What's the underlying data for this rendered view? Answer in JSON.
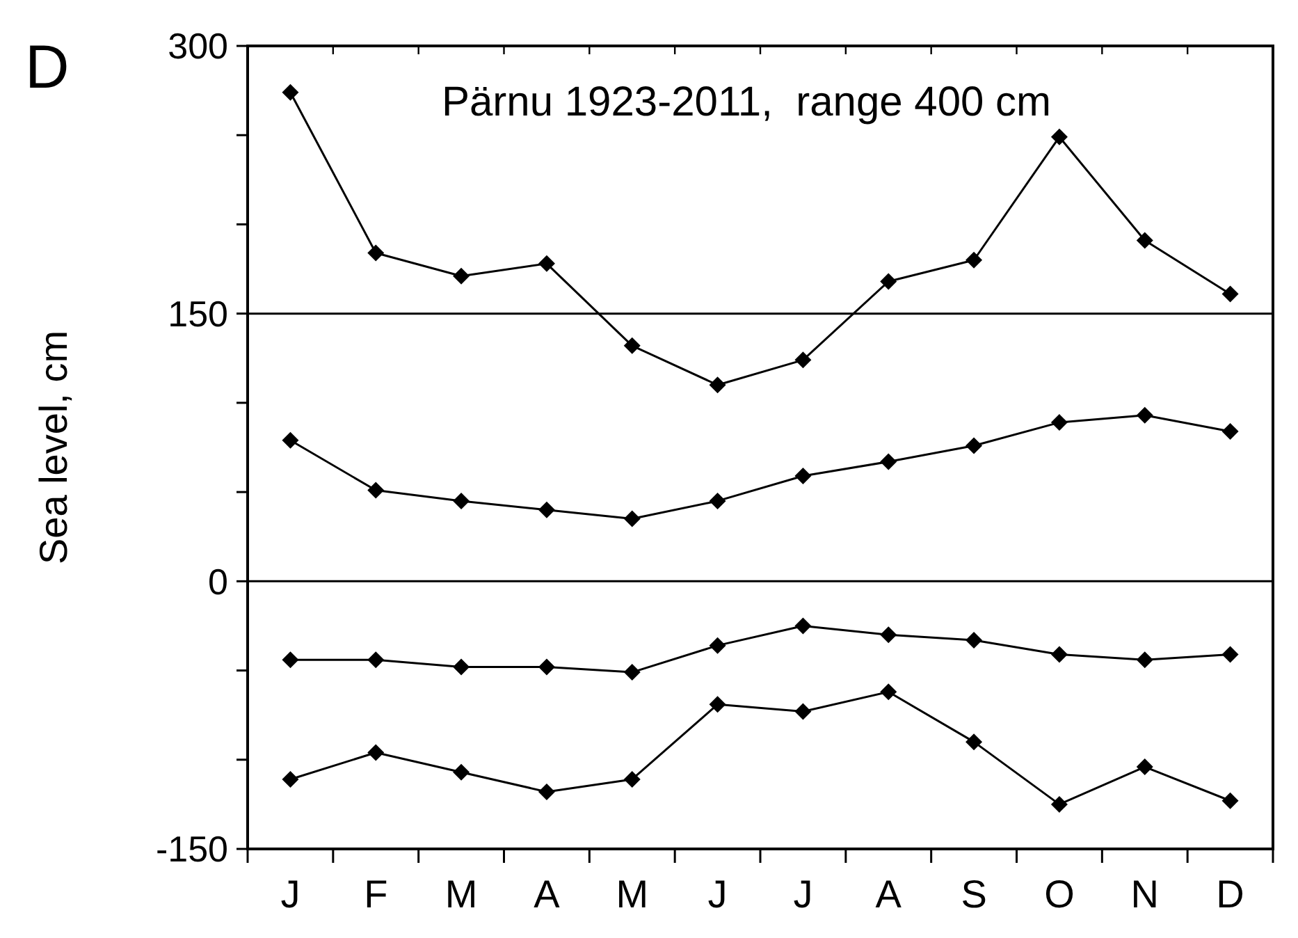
{
  "chart_data": {
    "type": "line",
    "title": "Pärnu 1923-2011,  range 400 cm",
    "ylabel": "Sea level, cm",
    "annotations": [
      "D"
    ],
    "categories": [
      "J",
      "F",
      "M",
      "A",
      "M",
      "J",
      "J",
      "A",
      "S",
      "O",
      "N",
      "D"
    ],
    "series": [
      {
        "color": "#000000",
        "values": [
          274,
          184,
          171,
          178,
          132,
          110,
          124,
          168,
          180,
          249,
          191,
          161
        ]
      },
      {
        "color": "#000000",
        "values": [
          79,
          51,
          45,
          40,
          35,
          45,
          59,
          67,
          76,
          89,
          93,
          84
        ]
      },
      {
        "color": "#000000",
        "values": [
          -44,
          -44,
          -48,
          -48,
          -51,
          -36,
          -25,
          -30,
          -33,
          -41,
          -44,
          -41
        ]
      },
      {
        "color": "#000000",
        "values": [
          -111,
          -96,
          -107,
          -118,
          -111,
          -69,
          -73,
          -62,
          -90,
          -125,
          -104,
          -123
        ]
      }
    ],
    "ylim": [
      -150,
      300
    ],
    "yticks": [
      -150,
      {
        "value": -100,
        "label": null
      },
      {
        "value": -50,
        "label": null
      },
      0,
      {
        "value": 50,
        "label": null
      },
      {
        "value": 100,
        "label": null
      },
      150,
      {
        "value": 200,
        "label": null
      },
      {
        "value": 250,
        "label": null
      },
      300
    ],
    "ref_lines": [
      {
        "axis": "y",
        "value": 150
      },
      {
        "axis": "y",
        "value": 0
      }
    ],
    "grid": false,
    "marker": "diamond",
    "line_style": "solid"
  }
}
